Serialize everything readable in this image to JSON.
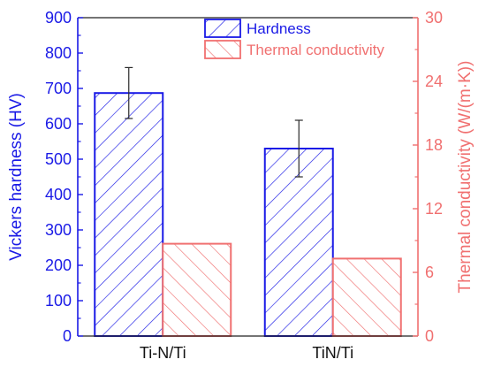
{
  "chart_data": {
    "type": "bar",
    "categories": [
      "Ti-N/Ti",
      "TiN/Ti"
    ],
    "series": [
      {
        "name": "Hardness",
        "axis": "left",
        "values": [
          687,
          530
        ],
        "error": [
          72,
          80
        ],
        "color": "#1a1ae6",
        "hatch": "forward-diagonal"
      },
      {
        "name": "Thermal conductivity",
        "axis": "right",
        "values": [
          8.7,
          7.3
        ],
        "color": "#f07070",
        "hatch": "backward-diagonal"
      }
    ],
    "ylabel_left": "Vickers hardness (HV)",
    "ylabel_right": "Thermal conductivity (W/(m·K))",
    "ylim_left": [
      0,
      900
    ],
    "ylim_right": [
      0,
      30
    ],
    "yticks_left": [
      "0",
      "100",
      "200",
      "300",
      "400",
      "500",
      "600",
      "700",
      "800",
      "900"
    ],
    "yticks_right": [
      "0",
      "6",
      "12",
      "18",
      "24",
      "30"
    ],
    "legend_position": "top-center",
    "grid": false
  }
}
